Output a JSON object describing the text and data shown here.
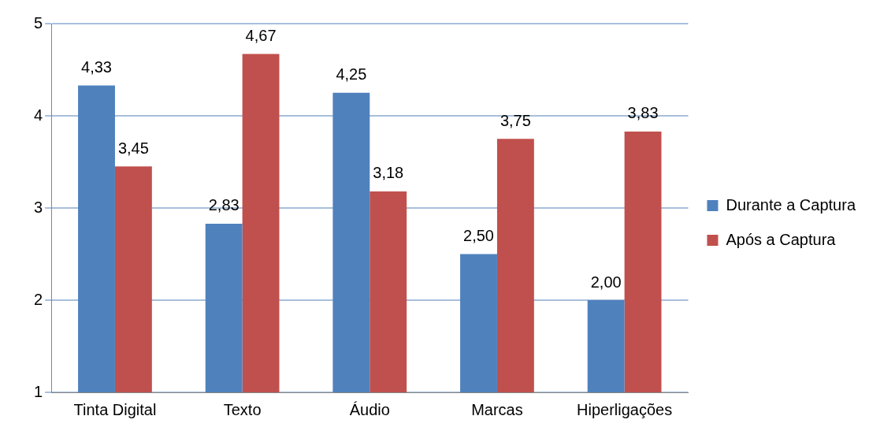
{
  "chart_data": {
    "type": "bar",
    "categories": [
      "Tinta Digital",
      "Texto",
      "Áudio",
      "Marcas",
      "Hiperligações"
    ],
    "series": [
      {
        "name": "Durante a Captura",
        "color": "#4f81bd",
        "values": [
          4.33,
          2.83,
          4.25,
          2.5,
          2.0
        ],
        "value_labels": [
          "4,33",
          "2,83",
          "4,25",
          "2,50",
          "2,00"
        ]
      },
      {
        "name": "Após a Captura",
        "color": "#c0504d",
        "values": [
          3.45,
          4.67,
          3.18,
          3.75,
          3.83
        ],
        "value_labels": [
          "3,45",
          "4,67",
          "3,18",
          "3,75",
          "3,83"
        ]
      }
    ],
    "ylim": [
      1,
      5
    ],
    "yticks": [
      1,
      2,
      3,
      4,
      5
    ],
    "grid": "y",
    "legend": "right"
  }
}
